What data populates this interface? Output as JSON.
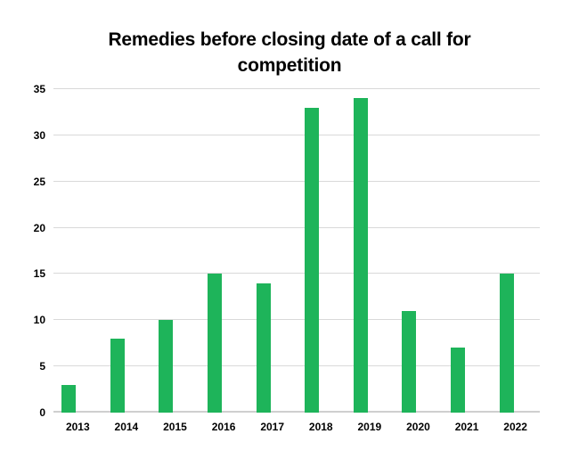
{
  "header": {
    "title_line1": "Remedies before closing date of a call for",
    "title_line2": "competition"
  },
  "chart_data": {
    "type": "bar",
    "title": "Remedies before closing date of a call for competition",
    "categories": [
      "2013",
      "2014",
      "2015",
      "2016",
      "2017",
      "2018",
      "2019",
      "2020",
      "2021",
      "2022"
    ],
    "values": [
      3,
      8,
      10,
      15,
      14,
      33,
      34,
      11,
      7,
      15
    ],
    "xlabel": "",
    "ylabel": "",
    "ylim": [
      0,
      35
    ],
    "ytick_step": 5,
    "yticks": [
      0,
      5,
      10,
      15,
      20,
      25,
      30,
      35
    ],
    "grid": true,
    "legend": false,
    "colors": {
      "bar": "#1eb45a",
      "gridline": "#d9d9d9",
      "axis_line": "#cfcfcf",
      "text": "#000000",
      "background": "#ffffff"
    }
  }
}
